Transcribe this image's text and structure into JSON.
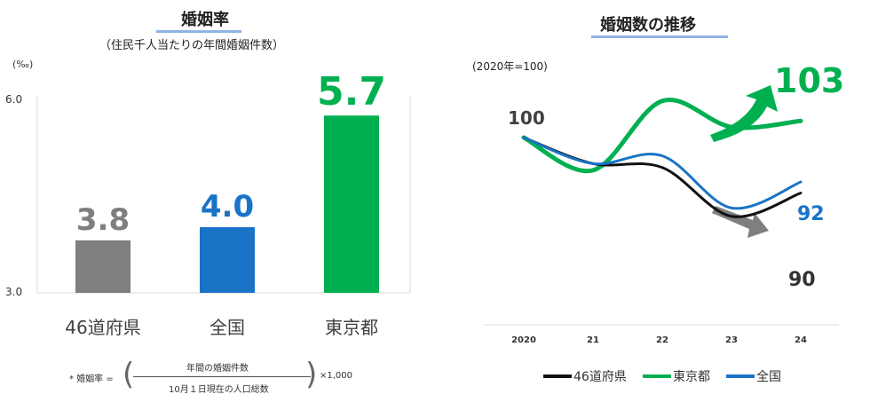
{
  "left_chart": {
    "title": "婚姻率",
    "subtitle": "（住民千人当たりの年間婚姻件数）"
  },
  "formula": {
    "prefix": "* 婚姻率 =",
    "numerator": "年間の婚姻件数",
    "denominator": "10月１日現在の人口総数",
    "multiplier": "×1,000"
  },
  "right_chart": {
    "title": "婚姻数の推移"
  },
  "chart_data": [
    {
      "type": "bar",
      "title": "婚姻率",
      "subtitle": "（住民千人当たりの年間婚姻件数）",
      "unit_label": "(‰)",
      "categories": [
        "46道府県",
        "全国",
        "東京都"
      ],
      "values": [
        3.8,
        4.0,
        5.7
      ],
      "value_labels": [
        "3.8",
        "4.0",
        "5.7"
      ],
      "colors": [
        "#7f7f7f",
        "#1a73c6",
        "#00b050"
      ],
      "ylim": [
        3.0,
        6.0
      ],
      "yticks": [
        "3.0",
        "6.0"
      ]
    },
    {
      "type": "line",
      "title": "婚姻数の推移",
      "subtitle": "(2020年=100)",
      "x": [
        "2020",
        "21",
        "22",
        "23",
        "24"
      ],
      "series": [
        {
          "name": "46道府県",
          "color": "#111111",
          "values": [
            100,
            95.3,
            94.6,
            85.8,
            90
          ]
        },
        {
          "name": "東京都",
          "color": "#00b050",
          "values": [
            100,
            94.1,
            106.6,
            101.9,
            103
          ]
        },
        {
          "name": "全国",
          "color": "#1a73c6",
          "values": [
            100,
            95.3,
            96.7,
            87.3,
            92
          ]
        }
      ],
      "point_labels": {
        "start": "100",
        "tokyo_end": "103",
        "national_end": "92",
        "prefectures_end": "90"
      }
    }
  ]
}
